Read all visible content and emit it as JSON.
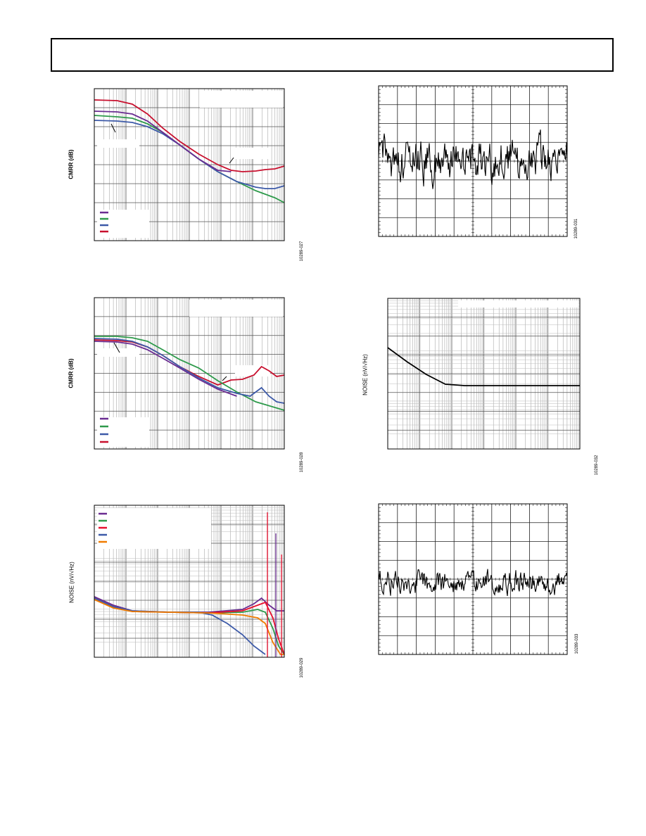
{
  "charts": [
    {
      "id": "cmrr1",
      "ylabel": "CMRR (dB)",
      "fig_id": "10289-027"
    },
    {
      "id": "time1",
      "ylabel": "",
      "fig_id": "10289-031"
    },
    {
      "id": "cmrr2",
      "ylabel": "CMRR (dB)",
      "fig_id": "10289-028"
    },
    {
      "id": "noise2",
      "ylabel": "NOISE (nV/√Hz)",
      "fig_id": "10289-032"
    },
    {
      "id": "noise1",
      "ylabel": "NOISE (nV/√Hz)",
      "fig_id": "10289-029"
    },
    {
      "id": "time2",
      "ylabel": "",
      "fig_id": "10289-033"
    }
  ],
  "chart_data": [
    {
      "type": "line",
      "title": "",
      "ylabel": "CMRR (dB)",
      "x_scale": "log",
      "series": [
        {
          "color": "#c8102e",
          "points": [
            [
              0.0,
              16
            ],
            [
              0.12,
              17
            ],
            [
              0.2,
              22
            ],
            [
              0.28,
              36
            ],
            [
              0.36,
              56
            ],
            [
              0.45,
              75
            ],
            [
              0.55,
              93
            ],
            [
              0.65,
              108
            ],
            [
              0.72,
              116
            ],
            [
              0.78,
              118
            ],
            [
              0.85,
              117
            ],
            [
              0.9,
              115
            ],
            [
              0.95,
              114
            ],
            [
              1.0,
              110
            ]
          ]
        },
        {
          "color": "#2e9a4b",
          "points": [
            [
              0.0,
              38
            ],
            [
              0.12,
              40
            ],
            [
              0.2,
              42
            ],
            [
              0.28,
              50
            ],
            [
              0.36,
              62
            ],
            [
              0.45,
              80
            ],
            [
              0.55,
              100
            ],
            [
              0.65,
              118
            ],
            [
              0.75,
              132
            ],
            [
              0.85,
              145
            ],
            [
              0.9,
              150
            ],
            [
              0.95,
              155
            ],
            [
              1.0,
              162
            ]
          ]
        },
        {
          "color": "#3d5aa8",
          "points": [
            [
              0.0,
              45
            ],
            [
              0.12,
              46
            ],
            [
              0.2,
              48
            ],
            [
              0.28,
              54
            ],
            [
              0.36,
              64
            ],
            [
              0.45,
              80
            ],
            [
              0.55,
              100
            ],
            [
              0.65,
              118
            ],
            [
              0.75,
              132
            ],
            [
              0.85,
              140
            ],
            [
              0.9,
              142
            ],
            [
              0.95,
              142
            ],
            [
              1.0,
              138
            ]
          ]
        },
        {
          "color": "#6a2c91",
          "points": [
            [
              0.0,
              32
            ],
            [
              0.12,
              33
            ],
            [
              0.2,
              36
            ],
            [
              0.28,
              46
            ],
            [
              0.36,
              62
            ],
            [
              0.45,
              80
            ],
            [
              0.55,
              100
            ],
            [
              0.65,
              116
            ],
            [
              0.72,
              118
            ]
          ]
        }
      ]
    },
    {
      "type": "line",
      "title": "",
      "ylabel": "",
      "series": [
        {
          "color": "#000000",
          "kind": "noise_time",
          "center_frac": 0.5,
          "amplitude_frac": 0.22
        }
      ]
    },
    {
      "type": "line",
      "title": "",
      "ylabel": "CMRR (dB)",
      "x_scale": "log",
      "series": [
        {
          "color": "#c8102e",
          "points": [
            [
              0.0,
              60
            ],
            [
              0.12,
              61
            ],
            [
              0.2,
              63
            ],
            [
              0.28,
              70
            ],
            [
              0.36,
              82
            ],
            [
              0.45,
              98
            ],
            [
              0.55,
              112
            ],
            [
              0.65,
              124
            ],
            [
              0.72,
              117
            ],
            [
              0.78,
              116
            ],
            [
              0.84,
              110
            ],
            [
              0.88,
              98
            ],
            [
              0.92,
              104
            ],
            [
              0.96,
              112
            ],
            [
              1.0,
              110
            ]
          ]
        },
        {
          "color": "#2e9a4b",
          "points": [
            [
              0.0,
              55
            ],
            [
              0.12,
              55
            ],
            [
              0.2,
              57
            ],
            [
              0.28,
              62
            ],
            [
              0.36,
              74
            ],
            [
              0.45,
              88
            ],
            [
              0.55,
              100
            ],
            [
              0.65,
              118
            ],
            [
              0.75,
              134
            ],
            [
              0.85,
              148
            ],
            [
              0.9,
              152
            ],
            [
              0.95,
              156
            ],
            [
              1.0,
              160
            ]
          ]
        },
        {
          "color": "#3d5aa8",
          "points": [
            [
              0.0,
              58
            ],
            [
              0.12,
              59
            ],
            [
              0.2,
              62
            ],
            [
              0.28,
              70
            ],
            [
              0.36,
              82
            ],
            [
              0.45,
              98
            ],
            [
              0.55,
              114
            ],
            [
              0.65,
              128
            ],
            [
              0.75,
              136
            ],
            [
              0.82,
              140
            ],
            [
              0.88,
              128
            ],
            [
              0.92,
              140
            ],
            [
              0.96,
              148
            ],
            [
              1.0,
              150
            ]
          ]
        },
        {
          "color": "#6a2c91",
          "points": [
            [
              0.0,
              62
            ],
            [
              0.12,
              63
            ],
            [
              0.2,
              66
            ],
            [
              0.28,
              74
            ],
            [
              0.36,
              86
            ],
            [
              0.45,
              100
            ],
            [
              0.55,
              116
            ],
            [
              0.65,
              130
            ],
            [
              0.75,
              140
            ]
          ]
        }
      ]
    },
    {
      "type": "line",
      "title": "",
      "ylabel": "NOISE (nV/√Hz)",
      "x_scale": "log",
      "series": [
        {
          "color": "#000000",
          "points": [
            [
              0.0,
              70
            ],
            [
              0.1,
              90
            ],
            [
              0.2,
              108
            ],
            [
              0.3,
              122
            ],
            [
              0.4,
              124
            ],
            [
              0.6,
              124
            ],
            [
              0.8,
              124
            ],
            [
              1.0,
              124
            ]
          ]
        }
      ]
    },
    {
      "type": "line",
      "title": "",
      "ylabel": "NOISE (nV/√Hz)",
      "x_scale": "log",
      "series": [
        {
          "color": "#6a2c91",
          "points": [
            [
              0.0,
              130
            ],
            [
              0.1,
              142
            ],
            [
              0.2,
              150
            ],
            [
              0.4,
              152
            ],
            [
              0.6,
              152
            ],
            [
              0.78,
              148
            ],
            [
              0.84,
              140
            ],
            [
              0.88,
              132
            ],
            [
              0.92,
              142
            ],
            [
              0.96,
              150
            ],
            [
              1.0,
              150
            ]
          ]
        },
        {
          "color": "#2e9a4b",
          "points": [
            [
              0.0,
              133
            ],
            [
              0.1,
              145
            ],
            [
              0.2,
              151
            ],
            [
              0.4,
              152
            ],
            [
              0.6,
              153
            ],
            [
              0.78,
              152
            ],
            [
              0.86,
              148
            ],
            [
              0.9,
              152
            ],
            [
              0.94,
              175
            ],
            [
              0.97,
              200
            ],
            [
              1.0,
              212
            ]
          ]
        },
        {
          "color": "#e8102e",
          "points": [
            [
              0.0,
              132
            ],
            [
              0.1,
              144
            ],
            [
              0.2,
              151
            ],
            [
              0.4,
              152
            ],
            [
              0.6,
              153
            ],
            [
              0.78,
              150
            ],
            [
              0.86,
              142
            ],
            [
              0.9,
              138
            ],
            [
              0.94,
              160
            ],
            [
              0.97,
              190
            ],
            [
              1.0,
              212
            ]
          ]
        },
        {
          "color": "#3d5aa8",
          "points": [
            [
              0.0,
              132
            ],
            [
              0.1,
              144
            ],
            [
              0.2,
              150
            ],
            [
              0.4,
              152
            ],
            [
              0.55,
              152
            ],
            [
              0.62,
              156
            ],
            [
              0.7,
              168
            ],
            [
              0.78,
              184
            ],
            [
              0.84,
              200
            ],
            [
              0.9,
              212
            ]
          ]
        },
        {
          "color": "#f07c00",
          "points": [
            [
              0.0,
              134
            ],
            [
              0.1,
              146
            ],
            [
              0.2,
              151
            ],
            [
              0.4,
              152
            ],
            [
              0.6,
              153
            ],
            [
              0.78,
              156
            ],
            [
              0.86,
              160
            ],
            [
              0.9,
              168
            ],
            [
              0.94,
              195
            ],
            [
              0.98,
              212
            ],
            [
              1.0,
              212
            ]
          ]
        }
      ]
    },
    {
      "type": "line",
      "title": "",
      "ylabel": "",
      "series": [
        {
          "color": "#000000",
          "kind": "noise_time",
          "center_frac": 0.5,
          "amplitude_frac": 0.12
        }
      ]
    }
  ]
}
